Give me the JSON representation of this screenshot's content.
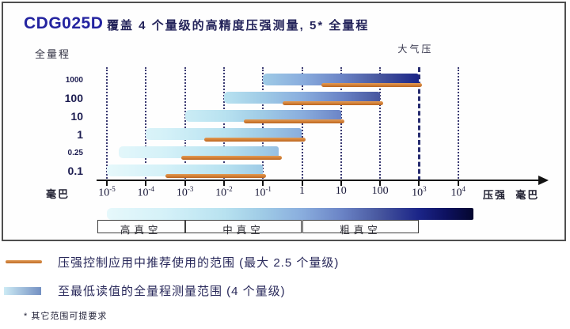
{
  "header": {
    "product": "CDG025D",
    "subtitle": "覆盖 4 个量级的高精度压强测量, 5* 全量程"
  },
  "chart_data": {
    "type": "bar",
    "title": "CDG025D 覆盖 4 个量级的高精度压强测量, 5* 全量程",
    "x_axis": {
      "scale": "log10",
      "label": "压强  毫巴",
      "range_exp10": [
        -5,
        4
      ],
      "ticks": [
        {
          "base": "10",
          "sup": "-5",
          "exp10": -5
        },
        {
          "base": "10",
          "sup": "-4",
          "exp10": -4
        },
        {
          "base": "10",
          "sup": "-3",
          "exp10": -3
        },
        {
          "base": "10",
          "sup": "-2",
          "exp10": -2
        },
        {
          "base": "10",
          "sup": "-1",
          "exp10": -1
        },
        {
          "base": "1",
          "sup": "",
          "exp10": 0
        },
        {
          "base": "10",
          "sup": "",
          "exp10": 1
        },
        {
          "base": "100",
          "sup": "",
          "exp10": 2
        },
        {
          "base": "10",
          "sup": "3",
          "exp10": 3
        },
        {
          "base": "10",
          "sup": "4",
          "exp10": 4
        }
      ]
    },
    "y_axis": {
      "label": "全量程",
      "unit": "毫巴"
    },
    "atmosphere": {
      "label": "大气压",
      "exp10": 3
    },
    "series": [
      {
        "full_scale_mbar": "1000",
        "measure_range_exp10": [
          -1,
          3
        ],
        "recommended_range_exp10": [
          0.5,
          3
        ]
      },
      {
        "full_scale_mbar": "100",
        "measure_range_exp10": [
          -2,
          2
        ],
        "recommended_range_exp10": [
          -0.5,
          2
        ]
      },
      {
        "full_scale_mbar": "10",
        "measure_range_exp10": [
          -3,
          1
        ],
        "recommended_range_exp10": [
          -1.5,
          1
        ]
      },
      {
        "full_scale_mbar": "1",
        "measure_range_exp10": [
          -4,
          0
        ],
        "recommended_range_exp10": [
          -2.5,
          0
        ]
      },
      {
        "full_scale_mbar": "0.25",
        "measure_range_exp10": [
          -4.7,
          -0.6
        ],
        "recommended_range_exp10": [
          -3.1,
          -0.6
        ]
      },
      {
        "full_scale_mbar": "0.1",
        "measure_range_exp10": [
          -5,
          -1
        ],
        "recommended_range_exp10": [
          -3.5,
          -1
        ]
      }
    ],
    "vacuum_scale": {
      "gradient_range_exp10": [
        -5,
        4.4
      ],
      "regions": [
        {
          "label": "高真空",
          "exp10": [
            -5.25,
            -3
          ]
        },
        {
          "label": "中真空",
          "exp10": [
            -3,
            0
          ]
        },
        {
          "label": "粗真空",
          "exp10": [
            0,
            3
          ]
        }
      ]
    }
  },
  "legend": {
    "recommended": "压强控制应用中推荐使用的范围 (最大 2.5 个量级)",
    "full_range": "至最低读值的全量程测量范围 (4 个量级)"
  },
  "footnote": "* 其它范围可提要求",
  "colors": {
    "accent_orange": "#cf7c33",
    "title_navy": "#2424a0",
    "bar_gradient": [
      "#e6f8fb",
      "#b8e2f0",
      "#8aaede",
      "#6b84c6",
      "#1b2588",
      "#04062e"
    ]
  }
}
